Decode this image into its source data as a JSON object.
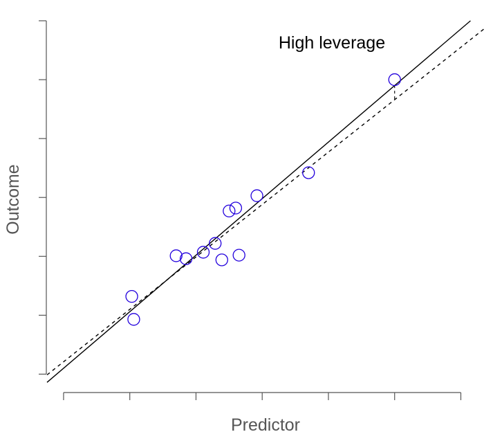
{
  "chart_data": {
    "type": "scatter",
    "xlabel": "Predictor",
    "ylabel": "Outcome",
    "annotation": "High leverage",
    "xlim": [
      -0.25,
      6.35
    ],
    "ylim": [
      -0.23,
      6.0
    ],
    "x_ticks": [
      0,
      1,
      2,
      3,
      4,
      5,
      6
    ],
    "y_ticks": [
      0,
      1,
      2,
      3,
      4,
      5,
      6
    ],
    "tick_labels_shown": false,
    "grid": false,
    "legend": false,
    "point_color": "#2200dd",
    "points": [
      {
        "x": 1.03,
        "y": 1.32
      },
      {
        "x": 1.06,
        "y": 0.93
      },
      {
        "x": 1.7,
        "y": 2.01
      },
      {
        "x": 1.85,
        "y": 1.96
      },
      {
        "x": 2.11,
        "y": 2.07
      },
      {
        "x": 2.29,
        "y": 2.22
      },
      {
        "x": 2.39,
        "y": 1.94
      },
      {
        "x": 2.5,
        "y": 2.77
      },
      {
        "x": 2.6,
        "y": 2.82
      },
      {
        "x": 2.65,
        "y": 2.02
      },
      {
        "x": 2.92,
        "y": 3.03
      },
      {
        "x": 3.7,
        "y": 3.42
      },
      {
        "x": 5.0,
        "y": 5.0
      }
    ],
    "highlighted_point_index": 12,
    "lines": [
      {
        "style": "solid",
        "intercept": 0.1,
        "slope": 0.96
      },
      {
        "style": "dashed",
        "intercept": 0.21,
        "slope": 0.89
      }
    ]
  }
}
